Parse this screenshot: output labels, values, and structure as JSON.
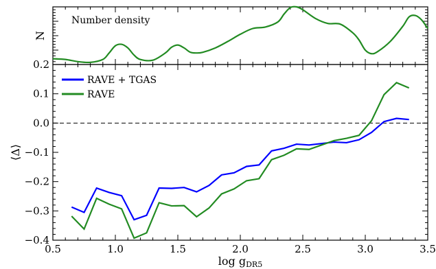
{
  "chart_data": [
    {
      "type": "line",
      "panel": "top",
      "annotation": "Number density",
      "ylabel": "N",
      "xlim": [
        0.5,
        3.5
      ],
      "ylim": [
        0.2,
        1.0
      ],
      "y_ticks": [
        0.2
      ],
      "y_tick_labels": [
        "0.2"
      ],
      "series": [
        {
          "color": "#228B22",
          "x": [
            0.5,
            0.6,
            0.7,
            0.8,
            0.9,
            0.95,
            1.0,
            1.05,
            1.1,
            1.15,
            1.2,
            1.3,
            1.4,
            1.45,
            1.5,
            1.55,
            1.6,
            1.65,
            1.7,
            1.8,
            1.9,
            2.0,
            2.1,
            2.2,
            2.3,
            2.35,
            2.4,
            2.45,
            2.5,
            2.6,
            2.7,
            2.8,
            2.9,
            2.95,
            3.0,
            3.05,
            3.1,
            3.2,
            3.3,
            3.35,
            3.4,
            3.45,
            3.5
          ],
          "values": [
            0.28,
            0.27,
            0.24,
            0.23,
            0.27,
            0.36,
            0.46,
            0.48,
            0.43,
            0.33,
            0.27,
            0.26,
            0.36,
            0.44,
            0.47,
            0.43,
            0.37,
            0.36,
            0.37,
            0.43,
            0.52,
            0.62,
            0.7,
            0.72,
            0.79,
            0.9,
            0.99,
            1.0,
            0.96,
            0.84,
            0.77,
            0.76,
            0.64,
            0.54,
            0.4,
            0.35,
            0.38,
            0.52,
            0.73,
            0.86,
            0.88,
            0.82,
            0.7
          ]
        }
      ]
    },
    {
      "type": "line",
      "panel": "bottom",
      "xlabel_main": "log g",
      "xlabel_sub": "DR5",
      "ylabel": "⟨Δ⟩",
      "xlim": [
        0.5,
        3.5
      ],
      "ylim": [
        -0.4,
        0.2
      ],
      "x_ticks": [
        0.5,
        1.0,
        1.5,
        2.0,
        2.5,
        3.0,
        3.5
      ],
      "x_tick_labels": [
        "0.5",
        "1.0",
        "1.5",
        "2.0",
        "2.5",
        "3.0",
        "3.5"
      ],
      "y_ticks": [
        -0.4,
        -0.3,
        -0.2,
        -0.1,
        0.0,
        0.1
      ],
      "y_tick_labels": [
        "−0.4",
        "−0.3",
        "−0.2",
        "−0.1",
        "0.0",
        "0.1"
      ],
      "reference_line": 0.0,
      "legend_position": "top-left",
      "x": [
        0.65,
        0.75,
        0.85,
        0.95,
        1.05,
        1.15,
        1.25,
        1.35,
        1.45,
        1.55,
        1.65,
        1.75,
        1.85,
        1.95,
        2.05,
        2.15,
        2.25,
        2.35,
        2.45,
        2.55,
        2.65,
        2.75,
        2.85,
        2.95,
        3.05,
        3.15,
        3.25,
        3.35
      ],
      "series": [
        {
          "name": "RAVE + TGAS",
          "color": "#0000FF",
          "values": [
            -0.287,
            -0.305,
            -0.222,
            -0.237,
            -0.248,
            -0.33,
            -0.315,
            -0.222,
            -0.223,
            -0.22,
            -0.235,
            -0.213,
            -0.177,
            -0.17,
            -0.148,
            -0.143,
            -0.095,
            -0.086,
            -0.072,
            -0.075,
            -0.07,
            -0.065,
            -0.067,
            -0.057,
            -0.032,
            0.005,
            0.016,
            0.012
          ]
        },
        {
          "name": "RAVE",
          "color": "#228B22",
          "values": [
            -0.318,
            -0.362,
            -0.257,
            -0.277,
            -0.293,
            -0.393,
            -0.375,
            -0.272,
            -0.283,
            -0.282,
            -0.32,
            -0.29,
            -0.242,
            -0.225,
            -0.197,
            -0.19,
            -0.125,
            -0.11,
            -0.088,
            -0.09,
            -0.075,
            -0.06,
            -0.052,
            -0.042,
            0.008,
            0.097,
            0.138,
            0.12
          ]
        }
      ]
    }
  ]
}
